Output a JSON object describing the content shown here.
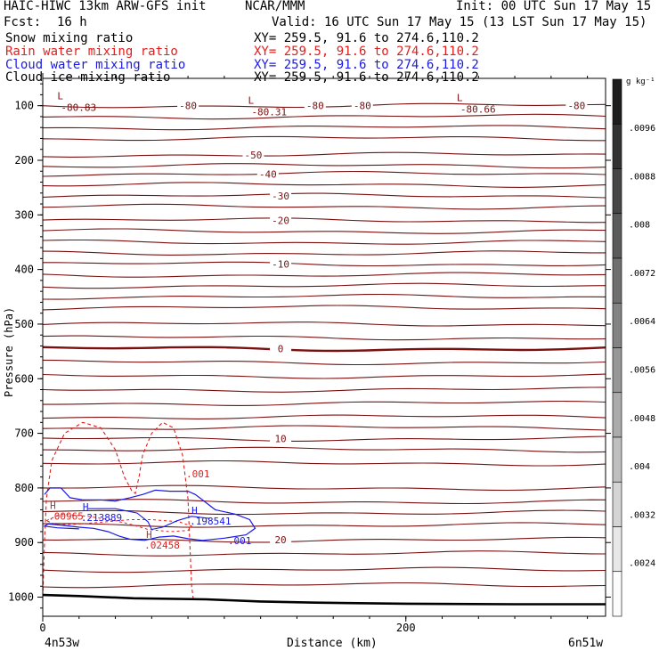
{
  "header": {
    "model": "HAIC-HIWC 13km ARW-GFS init",
    "org": "NCAR/MMM",
    "init": "Init: 00 UTC Sun 17 May 15",
    "fcst_label": "Fcst:",
    "fcst_value": "16 h",
    "valid": "Valid: 16 UTC Sun 17 May 15 (13 LST Sun 17 May 15)"
  },
  "fields": [
    {
      "name": "Snow mixing ratio",
      "xy": "XY= 259.5, 91.6 to 274.6,110.2",
      "color": "#000000"
    },
    {
      "name": "Rain water mixing ratio",
      "xy": "XY= 259.5, 91.6 to 274.6,110.2",
      "color": "#e0201e"
    },
    {
      "name": "Cloud water mixing ratio",
      "xy": "XY= 259.5, 91.6 to 274.6,110.2",
      "color": "#1a1ae6"
    },
    {
      "name": "Cloud ice mixing ratio",
      "xy": "XY= 259.5, 91.6 to 274.6,110.2",
      "color": "#000000"
    }
  ],
  "chart_data": {
    "type": "cross-section contour",
    "ylabel": "Pressure (hPa)",
    "xlabel": "Distance (km)",
    "x_ticks": [
      "0",
      "200"
    ],
    "y_ticks": [
      "100",
      "200",
      "300",
      "400",
      "500",
      "600",
      "700",
      "800",
      "900",
      "1000"
    ],
    "xlim": [
      0,
      310
    ],
    "ylim_hpa": [
      50,
      1035
    ],
    "left_endpoint": "4n53w",
    "right_endpoint": "6n51w",
    "temperature_contours": [
      {
        "label": "-80",
        "p": 100
      },
      {
        "label": "-50",
        "p": 190
      },
      {
        "label": "-40",
        "p": 225
      },
      {
        "label": "-30",
        "p": 265
      },
      {
        "label": "-20",
        "p": 310
      },
      {
        "label": "-10",
        "p": 390
      },
      {
        "label": "0",
        "p": 545
      },
      {
        "label": "10",
        "p": 710
      },
      {
        "label": "20",
        "p": 895
      }
    ],
    "extreme_labels": [
      {
        "mark": "L",
        "value": "-80.83",
        "x_km": 10,
        "p": 100
      },
      {
        "mark": "L",
        "value": "-80.31",
        "x_km": 115,
        "p": 108
      },
      {
        "mark": "L",
        "value": "-80.66",
        "x_km": 230,
        "p": 103
      }
    ],
    "rain_labels": [
      {
        "value": ".001",
        "x_km": 79,
        "p": 777
      },
      {
        "mark": "H",
        "value": ".00965",
        "x_km": 3,
        "p": 855
      },
      {
        "mark": "H",
        "value": ".02458",
        "x_km": 56,
        "p": 908
      }
    ],
    "cloud_water_labels": [
      {
        "mark": "H",
        "value": ".213889",
        "x_km": 21,
        "p": 857
      },
      {
        "mark": "H",
        "value": ".198541",
        "x_km": 81,
        "p": 864
      },
      {
        "value": ".001",
        "x_km": 102,
        "p": 900
      }
    ],
    "colorbar": {
      "unit": "g kg⁻¹",
      "ticks": [
        ".0096",
        ".0088",
        ".008",
        ".0072",
        ".0064",
        ".0056",
        ".0048",
        ".004",
        ".0032",
        ".0024"
      ]
    },
    "colors": {
      "temperature": "#7a1010",
      "rain": "#e0201e",
      "cloud_water": "#1a1ae6",
      "terrain": "#000000"
    }
  }
}
